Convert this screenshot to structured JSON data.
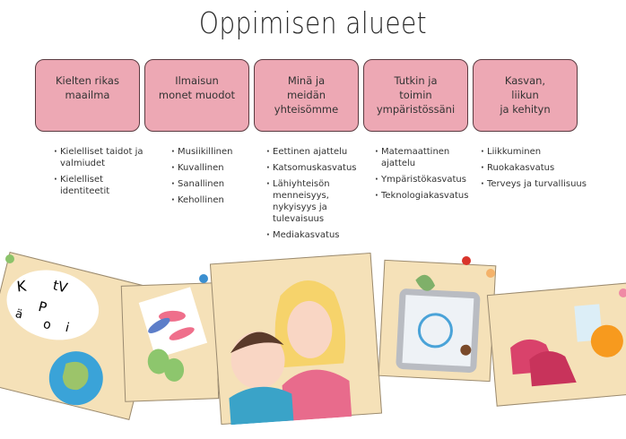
{
  "title": "Oppimisen alueet",
  "areas": [
    {
      "label": "Kielten rikas\nmaailma",
      "items": [
        "Kielelliset taidot ja valmiudet",
        "Kielelliset identiteetit"
      ]
    },
    {
      "label": "Ilmaisun\nmonet muodot",
      "items": [
        "Musiikillinen",
        "Kuvallinen",
        "Sanallinen",
        "Kehollinen"
      ]
    },
    {
      "label": "Minä ja\nmeidän yhteisömme",
      "items": [
        "Eettinen ajattelu",
        "Katsomuskasvatus",
        "Lähiyhteisön menneisyys, nykyisyys ja tulevaisuus",
        "Mediakasvatus"
      ]
    },
    {
      "label": "Tutkin ja\ntoimin\nympäristössäni",
      "items": [
        "Matemaattinen ajattelu",
        "Ympäristökasvatus",
        "Teknologiakasvatus"
      ]
    },
    {
      "label": "Kasvan,\nliikun\nja kehityn",
      "items": [
        "Liikkuminen",
        "Ruokakasvatus",
        "Terveys ja turvallisuus"
      ]
    }
  ],
  "illustration": {
    "letters": [
      "K",
      "t",
      "V",
      "P",
      "Ä",
      "ä",
      "o",
      "i",
      "i"
    ],
    "colors": {
      "box": "#eda8b4",
      "card": "#f5e1b8"
    }
  }
}
